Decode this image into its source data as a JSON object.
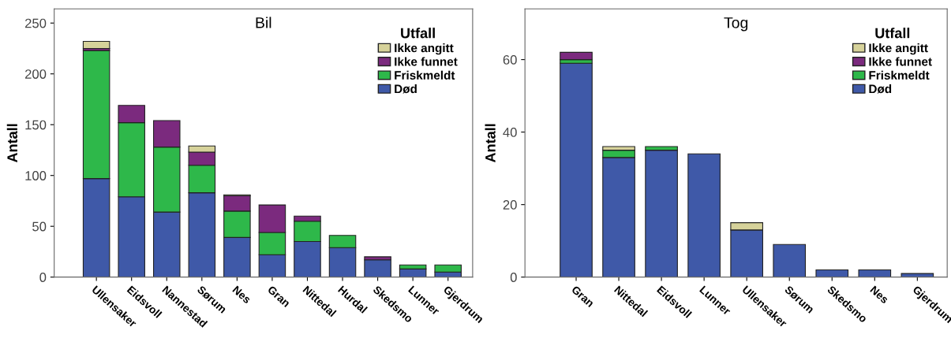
{
  "chart_data": [
    {
      "type": "bar",
      "title": "Bil",
      "ylabel": "Antall",
      "stacked": true,
      "legend": "top right",
      "legend_title": "Utfall",
      "grid": false,
      "categories": [
        "Ullensaker",
        "Eidsvoll",
        "Nannestad",
        "Sørum",
        "Nes",
        "Gran",
        "Nittedal",
        "Hurdal",
        "Skedsmo",
        "Lunner",
        "Gjerdrum"
      ],
      "ylim": [
        0,
        264
      ],
      "yticks": [
        0,
        50,
        100,
        150,
        200,
        250
      ],
      "series": [
        {
          "name": "Død",
          "color": "#3f59a8",
          "values": [
            97,
            79,
            64,
            83,
            39,
            22,
            35,
            29,
            17,
            8,
            5
          ]
        },
        {
          "name": "Friskmeldt",
          "color": "#2eb84a",
          "values": [
            126,
            73,
            64,
            27,
            26,
            22,
            20,
            12,
            null,
            4,
            7
          ]
        },
        {
          "name": "Ikke funnet",
          "color": "#7b2a7e",
          "values": [
            2,
            17,
            26,
            13,
            15,
            27,
            5,
            null,
            3,
            null,
            null
          ]
        },
        {
          "name": "Ikke angitt",
          "color": "#d6d29a",
          "values": [
            7,
            null,
            null,
            6,
            1,
            null,
            null,
            null,
            null,
            null,
            null
          ]
        }
      ]
    },
    {
      "type": "bar",
      "title": "Tog",
      "ylabel": "Antall",
      "stacked": true,
      "legend": "top right",
      "legend_title": "Utfall",
      "grid": false,
      "categories": [
        "Gran",
        "Nittedal",
        "Eidsvoll",
        "Lunner",
        "Ullensaker",
        "Sørum",
        "Skedsmo",
        "Nes",
        "Gjerdrum"
      ],
      "ylim": [
        0,
        74
      ],
      "yticks": [
        0,
        20,
        40,
        60
      ],
      "series": [
        {
          "name": "Død",
          "color": "#3f59a8",
          "values": [
            59,
            33,
            35,
            34,
            13,
            9,
            2,
            2,
            1
          ]
        },
        {
          "name": "Friskmeldt",
          "color": "#2eb84a",
          "values": [
            1,
            2,
            1,
            null,
            null,
            null,
            null,
            null,
            null
          ]
        },
        {
          "name": "Ikke funnet",
          "color": "#7b2a7e",
          "values": [
            2,
            null,
            null,
            null,
            null,
            null,
            null,
            null,
            null
          ]
        },
        {
          "name": "Ikke angitt",
          "color": "#d6d29a",
          "values": [
            null,
            1,
            null,
            null,
            2,
            null,
            null,
            null,
            null
          ]
        }
      ]
    }
  ]
}
